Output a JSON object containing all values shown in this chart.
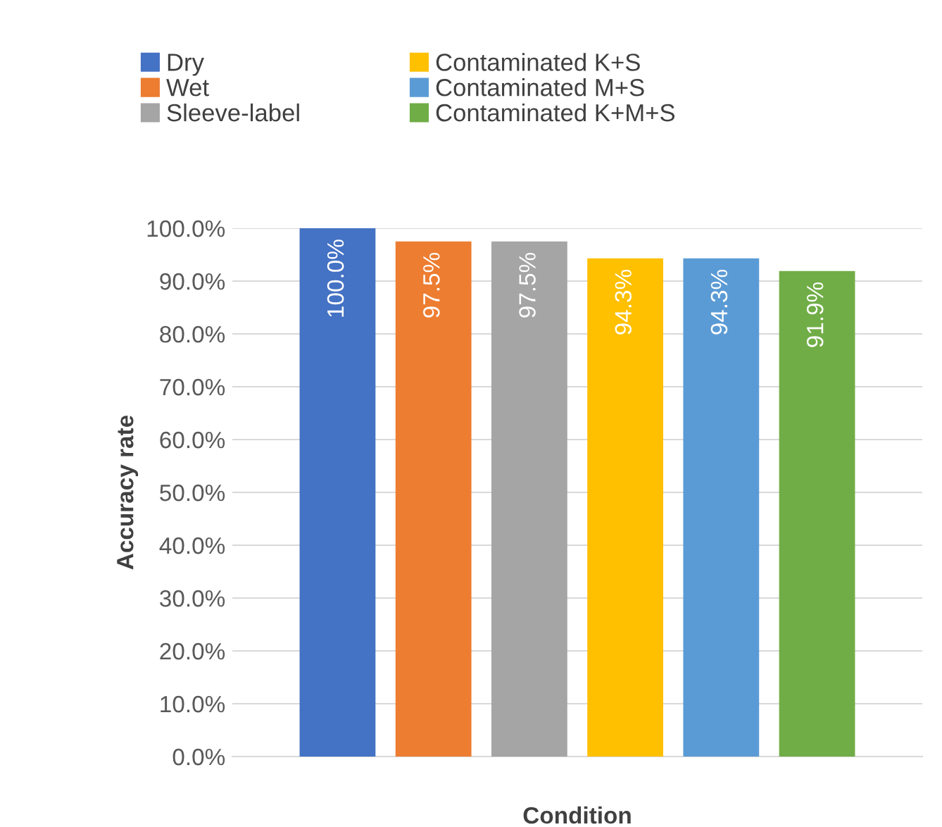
{
  "chart_data": {
    "type": "bar",
    "xlabel": "Condition",
    "ylabel": "Accuracy rate",
    "categories": [
      null
    ],
    "series": [
      {
        "name": "Dry",
        "color": "#4472c4",
        "values": [
          100.0
        ],
        "value_labels": [
          "100.0%"
        ]
      },
      {
        "name": "Wet",
        "color": "#ed7d31",
        "values": [
          97.5
        ],
        "value_labels": [
          "97.5%"
        ]
      },
      {
        "name": "Sleeve-label",
        "color": "#a5a5a5",
        "values": [
          97.5
        ],
        "value_labels": [
          "97.5%"
        ]
      },
      {
        "name": "Contaminated K+S",
        "color": "#ffc000",
        "values": [
          94.3
        ],
        "value_labels": [
          "94.3%"
        ]
      },
      {
        "name": "Contaminated M+S",
        "color": "#5b9bd5",
        "values": [
          94.3
        ],
        "value_labels": [
          "94.3%"
        ]
      },
      {
        "name": "Contaminated K+M+S",
        "color": "#70ad47",
        "values": [
          91.9
        ],
        "value_labels": [
          "91.9%"
        ]
      }
    ],
    "ylim": [
      0,
      100
    ],
    "yticks": [
      {
        "value": 0,
        "label": "0.0%"
      },
      {
        "value": 10,
        "label": "10.0%"
      },
      {
        "value": 20,
        "label": "20.0%"
      },
      {
        "value": 30,
        "label": "30.0%"
      },
      {
        "value": 40,
        "label": "40.0%"
      },
      {
        "value": 50,
        "label": "50.0%"
      },
      {
        "value": 60,
        "label": "60.0%"
      },
      {
        "value": 70,
        "label": "70.0%"
      },
      {
        "value": 80,
        "label": "80.0%"
      },
      {
        "value": 90,
        "label": "90.0%"
      },
      {
        "value": 100,
        "label": "100.0%"
      }
    ],
    "grid": "y",
    "legend": "top"
  }
}
